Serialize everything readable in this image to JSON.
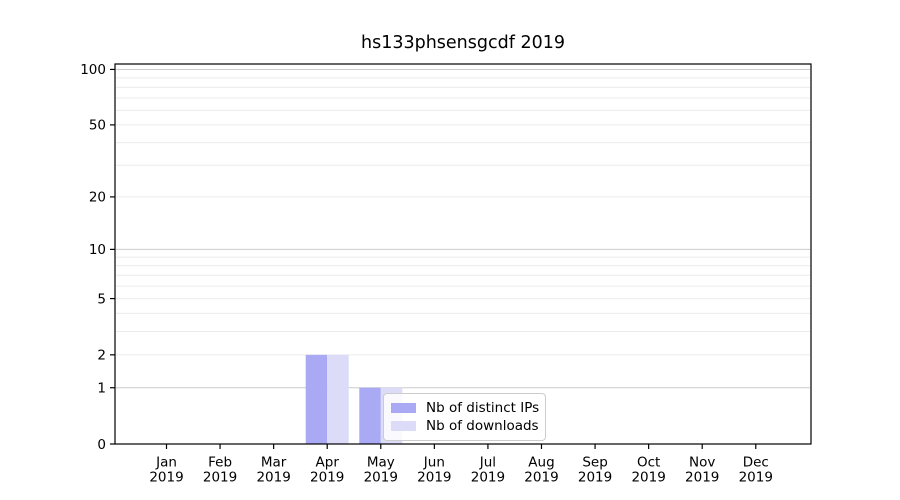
{
  "chart_data": {
    "type": "bar",
    "title": "hs133phsensgcdf 2019",
    "x_tick_labels": [
      {
        "month": "Jan",
        "year": "2019"
      },
      {
        "month": "Feb",
        "year": "2019"
      },
      {
        "month": "Mar",
        "year": "2019"
      },
      {
        "month": "Apr",
        "year": "2019"
      },
      {
        "month": "May",
        "year": "2019"
      },
      {
        "month": "Jun",
        "year": "2019"
      },
      {
        "month": "Jul",
        "year": "2019"
      },
      {
        "month": "Aug",
        "year": "2019"
      },
      {
        "month": "Sep",
        "year": "2019"
      },
      {
        "month": "Oct",
        "year": "2019"
      },
      {
        "month": "Nov",
        "year": "2019"
      },
      {
        "month": "Dec",
        "year": "2019"
      }
    ],
    "series": [
      {
        "name": "Nb of distinct IPs",
        "color": "#a9a9f4",
        "values": [
          0,
          0,
          0,
          2,
          1,
          0,
          0,
          0,
          0,
          0,
          0,
          0
        ]
      },
      {
        "name": "Nb of downloads",
        "color": "#dcdcf9",
        "values": [
          0,
          0,
          0,
          2,
          1,
          0,
          0,
          0,
          0,
          0,
          0,
          0
        ]
      }
    ],
    "y_scale": "log1p",
    "ylim": [
      0,
      107
    ],
    "y_tick_values": [
      0,
      1,
      2,
      5,
      10,
      20,
      50,
      100
    ],
    "y_gridline_values": [
      1,
      2,
      3,
      4,
      5,
      6,
      7,
      8,
      9,
      10,
      20,
      30,
      40,
      50,
      60,
      70,
      80,
      90,
      100
    ],
    "y_major_gridlines": [
      1,
      10,
      100
    ],
    "grid": "horizontal",
    "legend_position": "lower center-right, inside plot",
    "colors": {
      "grid_minor": "#ebebeb",
      "grid_major": "#cccccc",
      "spine": "#000000",
      "background": "#ffffff"
    }
  }
}
